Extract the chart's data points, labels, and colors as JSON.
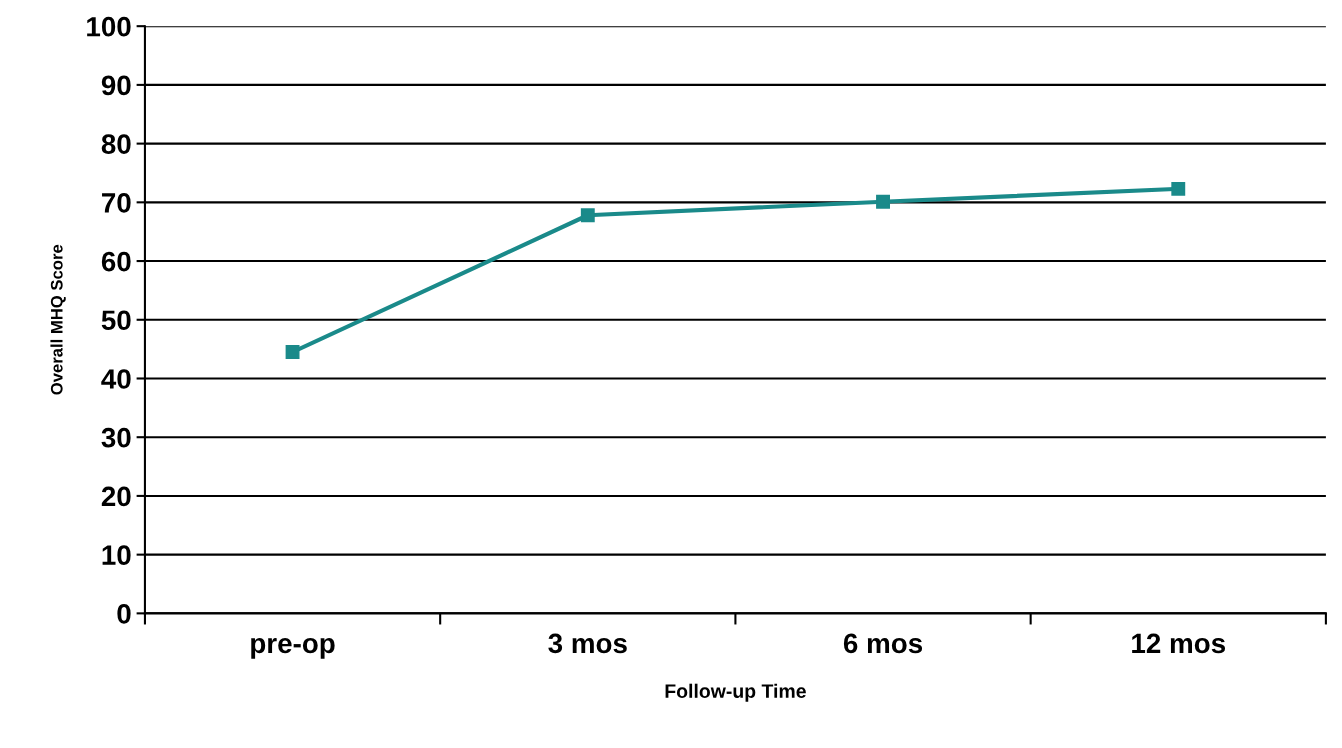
{
  "chart_data": {
    "type": "line",
    "xlabel": "Follow-up Time",
    "ylabel": "Overall MHQ Score",
    "categories": [
      "pre-op",
      "3 mos",
      "6 mos",
      "12 mos"
    ],
    "series": [
      {
        "color": "#1a8a8a",
        "values": [
          44.5,
          67.8,
          70.1,
          72.3
        ]
      }
    ],
    "ylim": [
      0,
      100
    ],
    "yticks": [
      0,
      10,
      20,
      30,
      40,
      50,
      60,
      70,
      80,
      90,
      100
    ],
    "grid": "y",
    "marker": "square",
    "line_style": "solid"
  }
}
